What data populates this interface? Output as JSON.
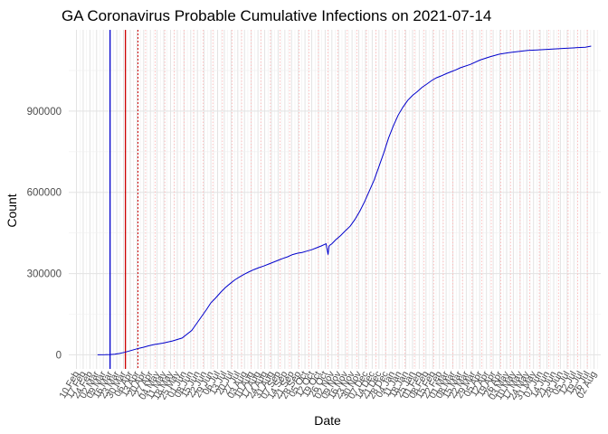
{
  "chart_data": {
    "type": "line",
    "title": "GA Coronavirus Probable Cumulative Infections on 2021-07-14",
    "xlabel": "Date",
    "ylabel": "Count",
    "grid": true,
    "colors": {
      "series": "#0000cc",
      "blue_marker": "#0000cc",
      "red_marker": "#cc0000",
      "red_dotted": "#cc0000",
      "pink_dotted": "#ffb0b0",
      "grid_major": "#e3e3e3",
      "grid_minor": "#efefef",
      "text": "#4d4d4d"
    },
    "x_start_label": "10 Feb",
    "x_day_range": [
      -8,
      546
    ],
    "y_range": [
      -52000,
      1200000
    ],
    "y_ticks": [
      0,
      300000,
      600000,
      900000
    ],
    "y_tick_labels": [
      "0",
      "300000",
      "600000",
      "900000"
    ],
    "y_minor_ticks": [
      150000,
      450000,
      750000,
      1050000
    ],
    "x_tick_days": [
      0,
      7,
      14,
      21,
      28,
      35,
      42,
      49,
      56,
      63,
      70,
      77,
      84,
      91,
      98,
      105,
      112,
      119,
      126,
      133,
      140,
      147,
      154,
      161,
      168,
      175,
      182,
      189,
      196,
      203,
      210,
      217,
      224,
      231,
      238,
      245,
      252,
      259,
      266,
      273,
      280,
      287,
      294,
      301,
      308,
      315,
      322,
      329,
      336,
      343,
      350,
      357,
      364,
      371,
      378,
      385,
      392,
      399,
      406,
      413,
      420,
      427,
      434,
      441,
      448,
      455,
      462,
      469,
      476,
      483,
      490,
      497,
      504,
      511,
      518,
      525,
      532,
      539
    ],
    "x_tick_labels": [
      "10 Feb",
      "17 Feb",
      "24 Feb",
      "02 Mar",
      "09 Mar",
      "16 Mar",
      "23 Mar",
      "30 Mar",
      "06 Apr",
      "13 Apr",
      "20 Apr",
      "27 Apr",
      "04 May",
      "11 May",
      "18 May",
      "25 May",
      "01 Jun",
      "08 Jun",
      "15 Jun",
      "22 Jun",
      "29 Jun",
      "06 Jul",
      "13 Jul",
      "20 Jul",
      "27 Jul",
      "03 Aug",
      "10 Aug",
      "17 Aug",
      "24 Aug",
      "31 Aug",
      "07 Sep",
      "14 Sep",
      "21 Sep",
      "28 Sep",
      "05 Oct",
      "12 Oct",
      "19 Oct",
      "26 Oct",
      "02 Nov",
      "09 Nov",
      "16 Nov",
      "23 Nov",
      "30 Nov",
      "07 Dec",
      "14 Dec",
      "21 Dec",
      "28 Dec",
      "04 Jan",
      "11 Jan",
      "18 Jan",
      "25 Jan",
      "01 Feb",
      "08 Feb",
      "15 Feb",
      "22 Feb",
      "01 Mar",
      "08 Mar",
      "15 Mar",
      "22 Mar",
      "29 Mar",
      "05 Apr",
      "12 Apr",
      "19 Apr",
      "26 Apr",
      "03 May",
      "10 May",
      "17 May",
      "24 May",
      "31 May",
      "07 Jun",
      "14 Jun",
      "21 Jun",
      "28 Jun",
      "05 Jul",
      "12 Jul",
      "19 Jul",
      "26 Jul",
      "02 Aug"
    ],
    "markers": {
      "blue_day": 35,
      "red_day": 51,
      "red_dotted_day": 64,
      "pink_dotted_days": [
        72,
        82,
        92,
        102,
        112,
        122,
        132,
        142,
        152,
        162,
        172,
        182,
        192,
        202,
        212,
        222,
        232,
        242,
        252,
        262,
        272,
        282,
        292,
        302,
        312,
        322,
        332,
        342,
        352,
        362,
        372,
        382,
        392,
        402,
        412,
        422,
        432,
        442,
        452,
        462,
        472,
        482,
        492,
        502,
        512,
        522,
        532
      ]
    },
    "series": [
      {
        "name": "Probable cumulative infections",
        "x_day": [
          22,
          30,
          35,
          40,
          45,
          50,
          55,
          60,
          65,
          70,
          75,
          80,
          90,
          100,
          110,
          120,
          125,
          130,
          135,
          140,
          145,
          150,
          155,
          160,
          165,
          170,
          175,
          180,
          185,
          190,
          195,
          200,
          205,
          210,
          215,
          220,
          225,
          230,
          235,
          240,
          245,
          250,
          255,
          260,
          262,
          263,
          264,
          266,
          270,
          275,
          280,
          285,
          290,
          295,
          300,
          305,
          310,
          315,
          320,
          325,
          330,
          335,
          340,
          345,
          350,
          355,
          360,
          365,
          370,
          375,
          380,
          385,
          390,
          395,
          400,
          410,
          420,
          430,
          440,
          450,
          460,
          470,
          480,
          490,
          500,
          510,
          520,
          530,
          536
        ],
        "values": [
          0,
          500,
          1000,
          2500,
          5000,
          9000,
          14000,
          19000,
          24000,
          28000,
          33000,
          37000,
          43000,
          51000,
          62000,
          90000,
          115000,
          140000,
          165000,
          192000,
          210000,
          230000,
          248000,
          263000,
          277000,
          288000,
          298000,
          307000,
          315000,
          322000,
          328000,
          335000,
          342000,
          349000,
          356000,
          362000,
          370000,
          375000,
          378000,
          383000,
          388000,
          395000,
          402000,
          410000,
          370000,
          400000,
          405000,
          410000,
          425000,
          440000,
          458000,
          475000,
          500000,
          530000,
          565000,
          605000,
          645000,
          695000,
          745000,
          800000,
          845000,
          885000,
          915000,
          940000,
          958000,
          972000,
          988000,
          1000000,
          1013000,
          1023000,
          1030000,
          1038000,
          1045000,
          1052000,
          1060000,
          1072000,
          1088000,
          1100000,
          1110000,
          1116000,
          1120000,
          1124000,
          1126000,
          1128000,
          1130000,
          1132000,
          1134000,
          1136000,
          1140000
        ]
      }
    ]
  }
}
